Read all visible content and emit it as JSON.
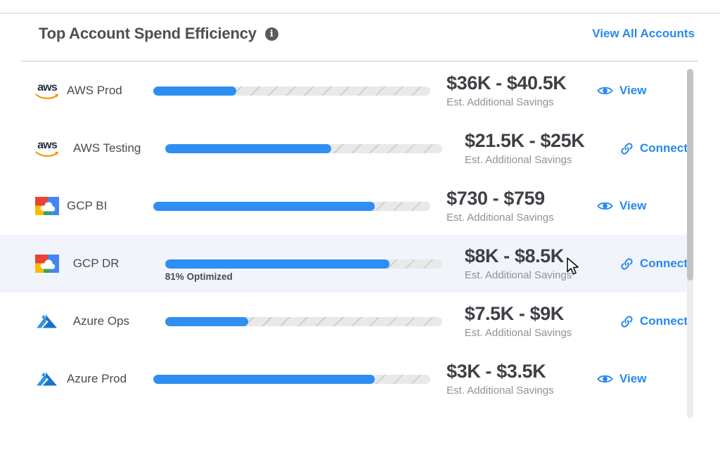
{
  "panel": {
    "title": "Top Account Spend Efficiency",
    "view_all_label": "View All Accounts"
  },
  "accounts": [
    {
      "provider": "aws",
      "name": "AWS Prod",
      "bar_pct": 30,
      "optimized_label": "",
      "savings_range": "$36K - $40.5K",
      "savings_caption": "Est. Additional Savings",
      "action": "View",
      "action_icon": "eye-icon",
      "highlighted": false
    },
    {
      "provider": "aws",
      "name": "AWS Testing",
      "bar_pct": 60,
      "optimized_label": "",
      "savings_range": "$21.5K - $25K",
      "savings_caption": "Est. Additional Savings",
      "action": "Connect",
      "action_icon": "link-icon",
      "highlighted": false
    },
    {
      "provider": "gcp",
      "name": "GCP BI",
      "bar_pct": 80,
      "optimized_label": "",
      "savings_range": "$730 - $759",
      "savings_caption": "Est. Additional Savings",
      "action": "View",
      "action_icon": "eye-icon",
      "highlighted": false
    },
    {
      "provider": "gcp",
      "name": "GCP DR",
      "bar_pct": 81,
      "optimized_label": "81% Optimized",
      "savings_range": "$8K - $8.5K",
      "savings_caption": "Est. Additional Savings",
      "action": "Connect",
      "action_icon": "link-icon",
      "highlighted": true
    },
    {
      "provider": "azure",
      "name": "Azure Ops",
      "bar_pct": 30,
      "optimized_label": "",
      "savings_range": "$7.5K - $9K",
      "savings_caption": "Est. Additional Savings",
      "action": "Connect",
      "action_icon": "link-icon",
      "highlighted": false
    },
    {
      "provider": "azure",
      "name": "Azure Prod",
      "bar_pct": 80,
      "optimized_label": "",
      "savings_range": "$3K - $3.5K",
      "savings_caption": "Est. Additional Savings",
      "action": "View",
      "action_icon": "eye-icon",
      "highlighted": false
    }
  ],
  "colors": {
    "accent": "#2788f0",
    "bar_fill": "#2e8ff2",
    "bar_track": "#e9e9e9",
    "row_highlight": "#f1f5fb",
    "aws_orange": "#f79400",
    "gcp_red": "#ea4335",
    "gcp_yellow": "#fbbc05",
    "gcp_green": "#34a853",
    "gcp_blue": "#4285f4",
    "azure_blue": "#1a73ca"
  }
}
